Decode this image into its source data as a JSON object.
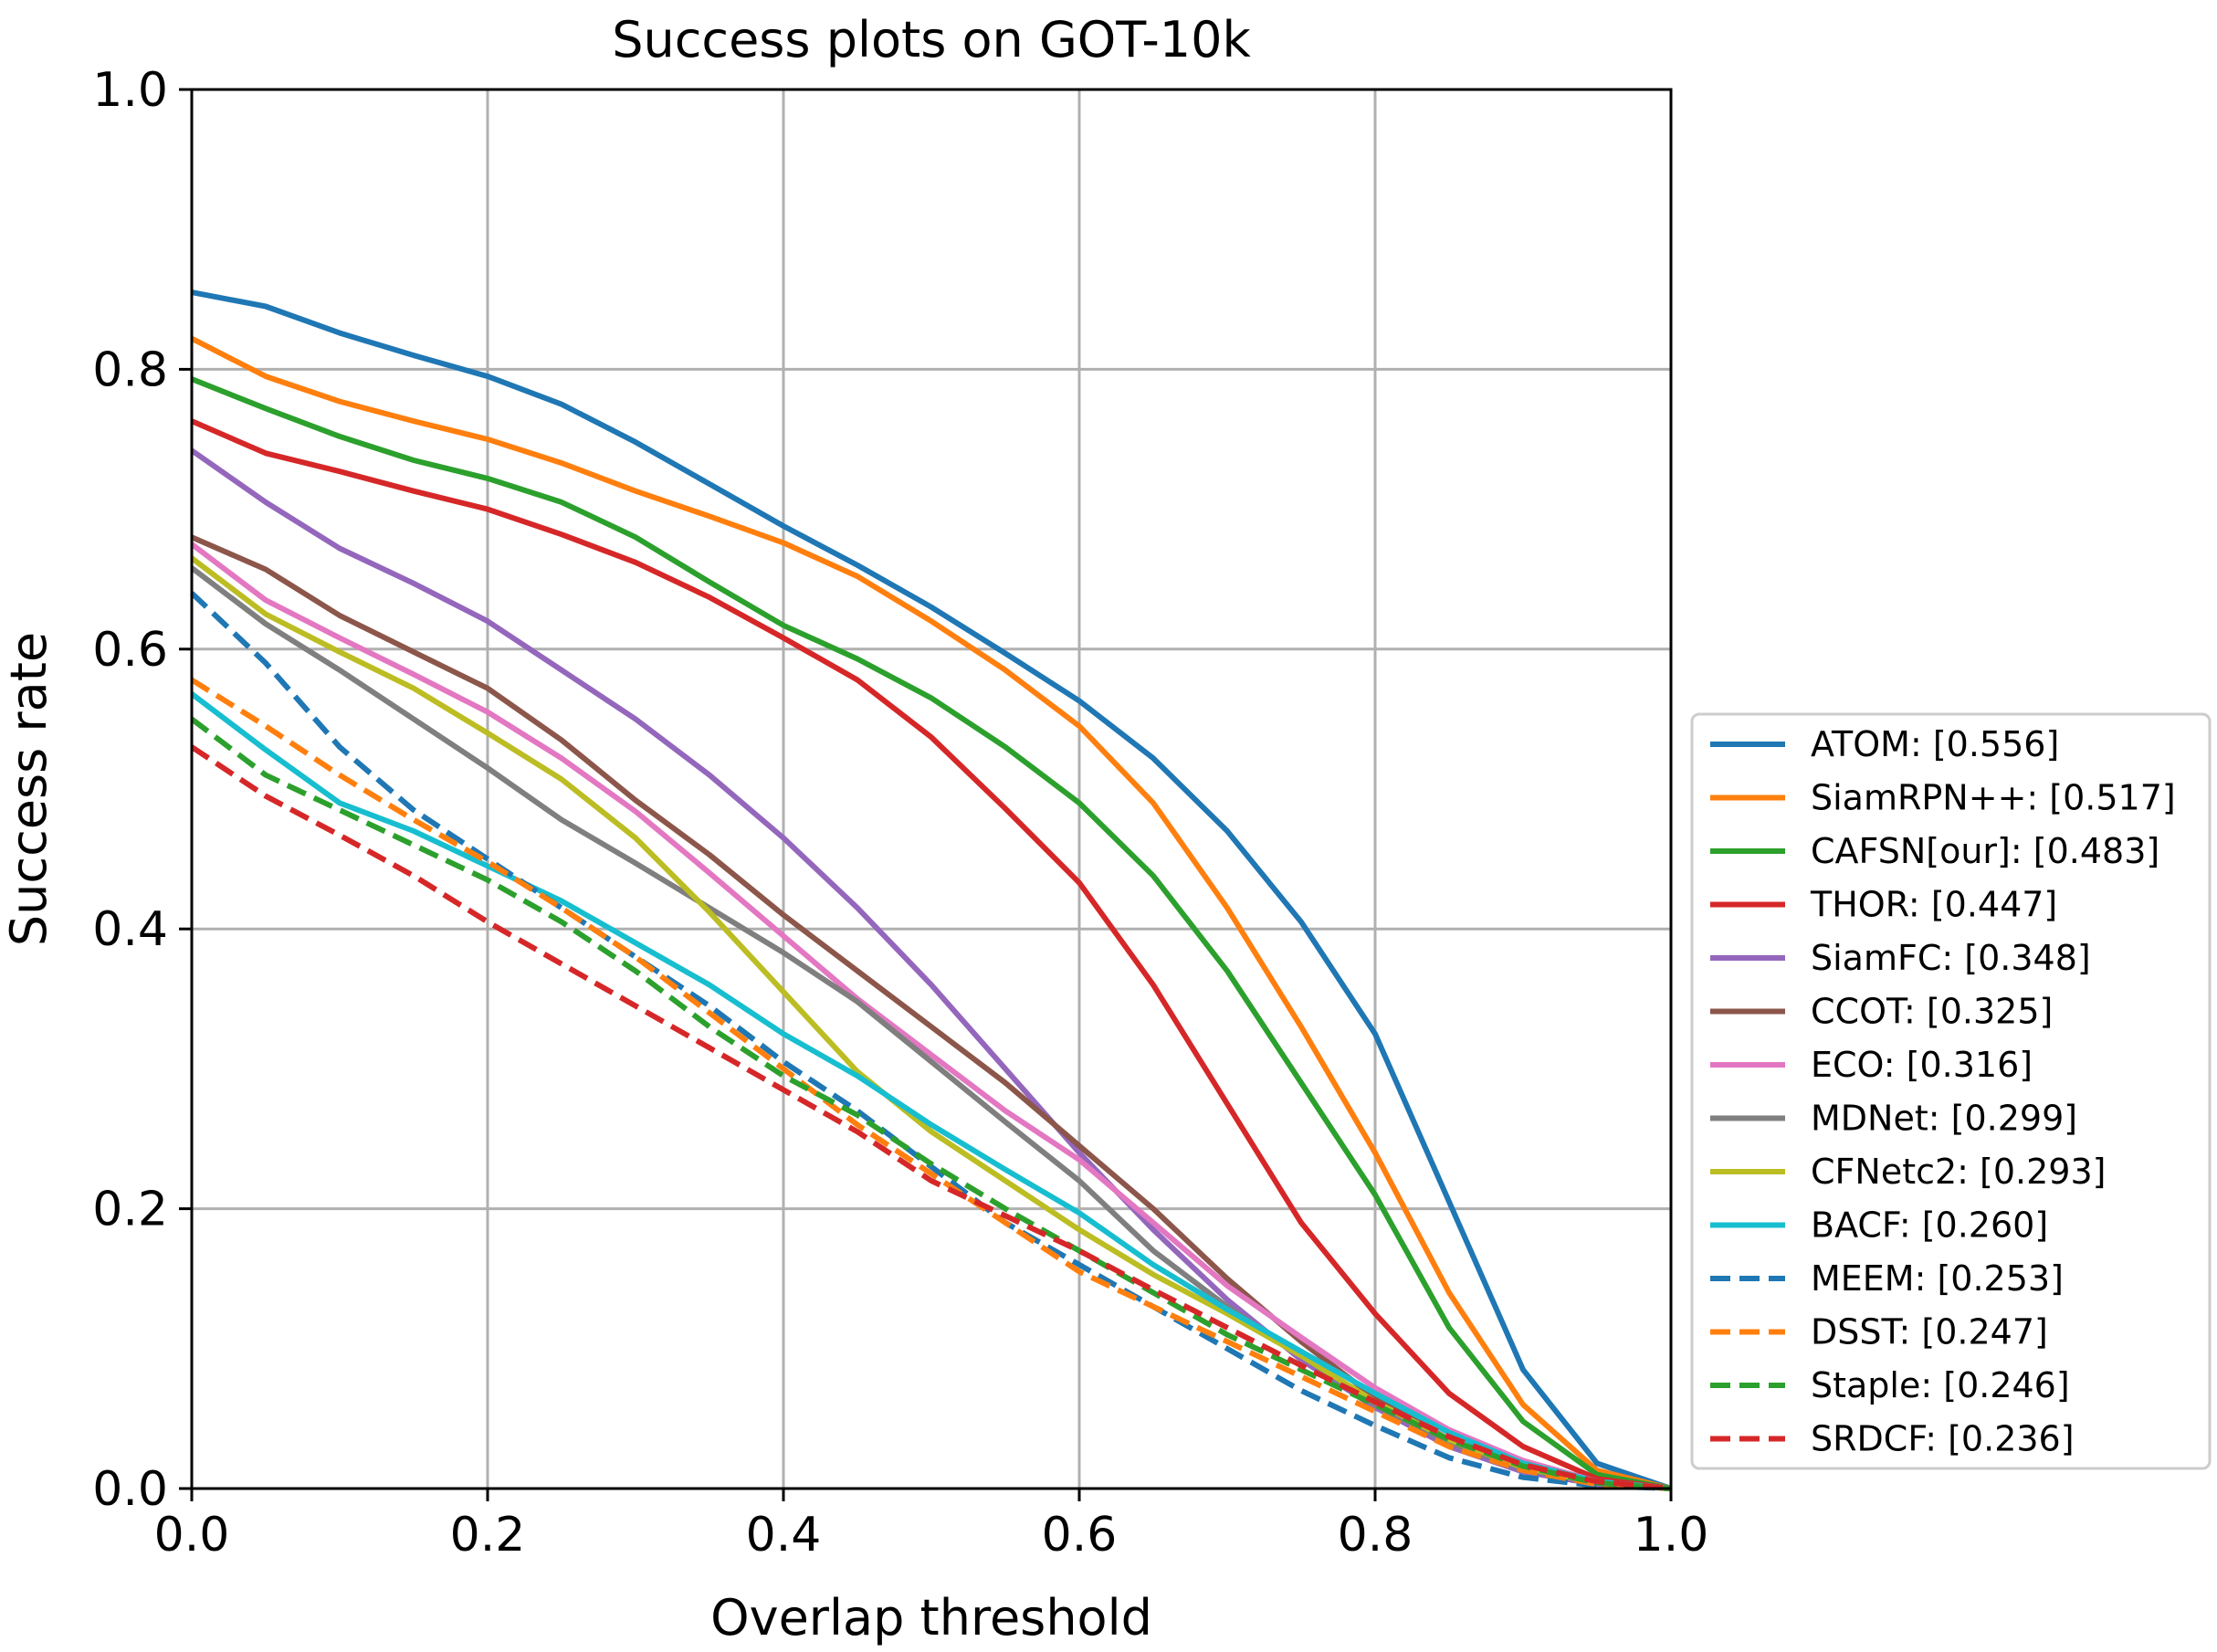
{
  "chart_data": {
    "type": "line",
    "title": "Success plots on GOT-10k",
    "xlabel": "Overlap threshold",
    "ylabel": "Success rate",
    "xlim": [
      0.0,
      1.0
    ],
    "ylim": [
      0.0,
      1.0
    ],
    "xticks": [
      "0.0",
      "0.2",
      "0.4",
      "0.6",
      "0.8",
      "1.0"
    ],
    "yticks": [
      "0.0",
      "0.2",
      "0.4",
      "0.6",
      "0.8",
      "1.0"
    ],
    "grid": true,
    "legend_position": "right",
    "x": [
      0.0,
      0.05,
      0.1,
      0.15,
      0.2,
      0.25,
      0.3,
      0.35,
      0.4,
      0.45,
      0.5,
      0.55,
      0.6,
      0.65,
      0.7,
      0.75,
      0.8,
      0.85,
      0.9,
      0.95,
      1.0
    ],
    "series": [
      {
        "name": "ATOM",
        "label": "ATOM: [0.556]",
        "color": "#1f77b4",
        "style": "solid",
        "values": [
          0.855,
          0.845,
          0.826,
          0.81,
          0.795,
          0.775,
          0.748,
          0.718,
          0.688,
          0.66,
          0.63,
          0.597,
          0.563,
          0.522,
          0.47,
          0.405,
          0.325,
          0.205,
          0.085,
          0.018,
          0.0
        ]
      },
      {
        "name": "SiamRPN++",
        "label": "SiamRPN++: [0.517]",
        "color": "#ff7f0e",
        "style": "solid",
        "values": [
          0.822,
          0.795,
          0.777,
          0.763,
          0.75,
          0.733,
          0.713,
          0.695,
          0.676,
          0.652,
          0.62,
          0.585,
          0.545,
          0.49,
          0.415,
          0.33,
          0.24,
          0.14,
          0.06,
          0.013,
          0.0
        ]
      },
      {
        "name": "CAFSN[our]",
        "label": "CAFSN[our]: [0.483]",
        "color": "#2ca02c",
        "style": "solid",
        "values": [
          0.793,
          0.772,
          0.752,
          0.735,
          0.722,
          0.705,
          0.68,
          0.648,
          0.617,
          0.593,
          0.565,
          0.53,
          0.49,
          0.438,
          0.37,
          0.29,
          0.21,
          0.115,
          0.048,
          0.01,
          0.0
        ]
      },
      {
        "name": "THOR",
        "label": "THOR: [0.447]",
        "color": "#d62728",
        "style": "solid",
        "values": [
          0.763,
          0.74,
          0.727,
          0.713,
          0.7,
          0.682,
          0.662,
          0.637,
          0.608,
          0.578,
          0.537,
          0.486,
          0.433,
          0.36,
          0.275,
          0.19,
          0.125,
          0.068,
          0.03,
          0.007,
          0.0
        ]
      },
      {
        "name": "SiamFC",
        "label": "SiamFC: [0.348]",
        "color": "#9467bd",
        "style": "solid",
        "values": [
          0.742,
          0.705,
          0.672,
          0.647,
          0.62,
          0.585,
          0.55,
          0.51,
          0.465,
          0.415,
          0.36,
          0.3,
          0.24,
          0.185,
          0.135,
          0.092,
          0.058,
          0.03,
          0.012,
          0.003,
          0.0
        ]
      },
      {
        "name": "CCOT",
        "label": "CCOT: [0.325]",
        "color": "#8c564b",
        "style": "solid",
        "values": [
          0.68,
          0.657,
          0.624,
          0.598,
          0.572,
          0.535,
          0.492,
          0.453,
          0.41,
          0.37,
          0.33,
          0.29,
          0.245,
          0.2,
          0.15,
          0.105,
          0.065,
          0.035,
          0.015,
          0.004,
          0.0
        ]
      },
      {
        "name": "ECO",
        "label": "ECO: [0.316]",
        "color": "#e377c2",
        "style": "solid",
        "values": [
          0.675,
          0.635,
          0.608,
          0.582,
          0.555,
          0.522,
          0.484,
          0.44,
          0.395,
          0.35,
          0.31,
          0.27,
          0.235,
          0.19,
          0.145,
          0.108,
          0.072,
          0.042,
          0.02,
          0.005,
          0.0
        ]
      },
      {
        "name": "MDNet",
        "label": "MDNet: [0.299]",
        "color": "#7f7f7f",
        "style": "solid",
        "values": [
          0.658,
          0.618,
          0.585,
          0.55,
          0.515,
          0.478,
          0.447,
          0.415,
          0.383,
          0.348,
          0.305,
          0.262,
          0.22,
          0.17,
          0.13,
          0.095,
          0.06,
          0.033,
          0.014,
          0.004,
          0.0
        ]
      },
      {
        "name": "CFNetc2",
        "label": "CFNetc2: [0.293]",
        "color": "#bcbd22",
        "style": "solid",
        "values": [
          0.665,
          0.625,
          0.598,
          0.572,
          0.54,
          0.507,
          0.465,
          0.412,
          0.355,
          0.298,
          0.255,
          0.22,
          0.185,
          0.153,
          0.125,
          0.095,
          0.062,
          0.035,
          0.015,
          0.004,
          0.0
        ]
      },
      {
        "name": "BACF",
        "label": "BACF: [0.260]",
        "color": "#17becf",
        "style": "solid",
        "values": [
          0.568,
          0.528,
          0.49,
          0.47,
          0.445,
          0.42,
          0.39,
          0.36,
          0.325,
          0.295,
          0.26,
          0.228,
          0.197,
          0.16,
          0.128,
          0.098,
          0.068,
          0.04,
          0.018,
          0.005,
          0.0
        ]
      },
      {
        "name": "MEEM",
        "label": "MEEM: [0.253]",
        "color": "#1f77b4",
        "style": "dashed",
        "values": [
          0.64,
          0.59,
          0.53,
          0.485,
          0.45,
          0.415,
          0.38,
          0.345,
          0.305,
          0.27,
          0.23,
          0.19,
          0.16,
          0.13,
          0.1,
          0.07,
          0.045,
          0.022,
          0.008,
          0.002,
          0.0
        ]
      },
      {
        "name": "DSST",
        "label": "DSST: [0.247]",
        "color": "#ff7f0e",
        "style": "dashed",
        "values": [
          0.578,
          0.545,
          0.51,
          0.478,
          0.448,
          0.415,
          0.38,
          0.34,
          0.3,
          0.26,
          0.225,
          0.19,
          0.155,
          0.13,
          0.105,
          0.08,
          0.055,
          0.03,
          0.013,
          0.003,
          0.0
        ]
      },
      {
        "name": "Staple",
        "label": "Staple: [0.246]",
        "color": "#2ca02c",
        "style": "dashed",
        "values": [
          0.55,
          0.51,
          0.485,
          0.46,
          0.435,
          0.405,
          0.37,
          0.33,
          0.295,
          0.267,
          0.232,
          0.2,
          0.17,
          0.14,
          0.11,
          0.085,
          0.06,
          0.035,
          0.016,
          0.004,
          0.0
        ]
      },
      {
        "name": "SRDCF",
        "label": "SRDCF: [0.236]",
        "color": "#d62728",
        "style": "dashed",
        "values": [
          0.53,
          0.495,
          0.467,
          0.438,
          0.405,
          0.375,
          0.345,
          0.315,
          0.285,
          0.255,
          0.22,
          0.195,
          0.17,
          0.142,
          0.115,
          0.088,
          0.062,
          0.037,
          0.017,
          0.005,
          0.0
        ]
      }
    ]
  }
}
